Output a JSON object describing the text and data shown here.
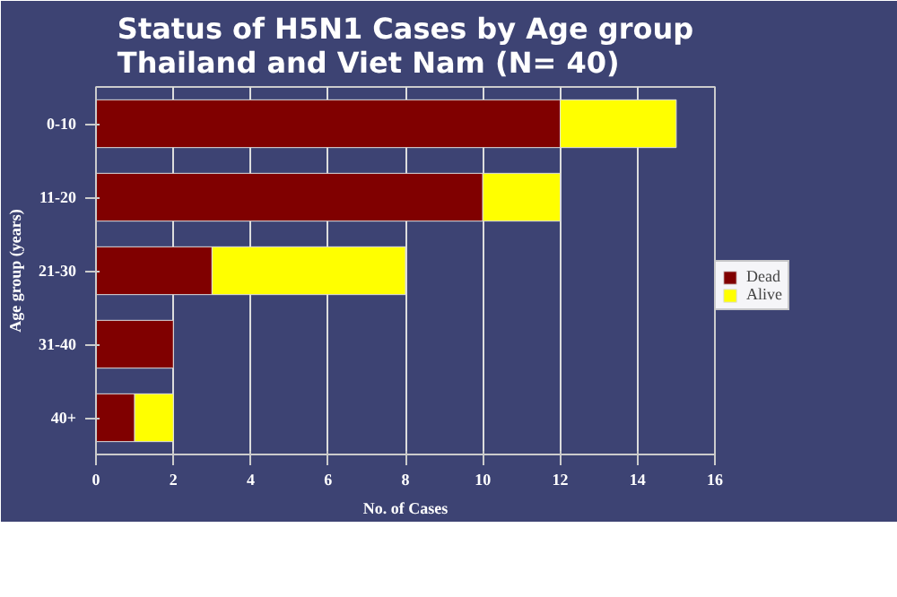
{
  "chart_data": {
    "type": "bar",
    "orientation": "horizontal",
    "stacked": true,
    "title": "Status of H5N1 Cases by Age group\nThailand and Viet Nam (N= 40)",
    "xlabel": "No. of Cases",
    "ylabel": "Age group (years)",
    "categories": [
      "0-10",
      "11-20",
      "21-30",
      "31-40",
      "40+"
    ],
    "series": [
      {
        "name": "Dead",
        "color": "#800000",
        "values": [
          12,
          10,
          3,
          2,
          1
        ]
      },
      {
        "name": "Alive",
        "color": "#ffff00",
        "values": [
          3,
          2,
          5,
          0,
          1
        ]
      }
    ],
    "xlim": [
      0,
      16
    ],
    "xticks": [
      0,
      2,
      4,
      6,
      8,
      10,
      12,
      14,
      16
    ],
    "grid": "x",
    "legend": "right"
  }
}
